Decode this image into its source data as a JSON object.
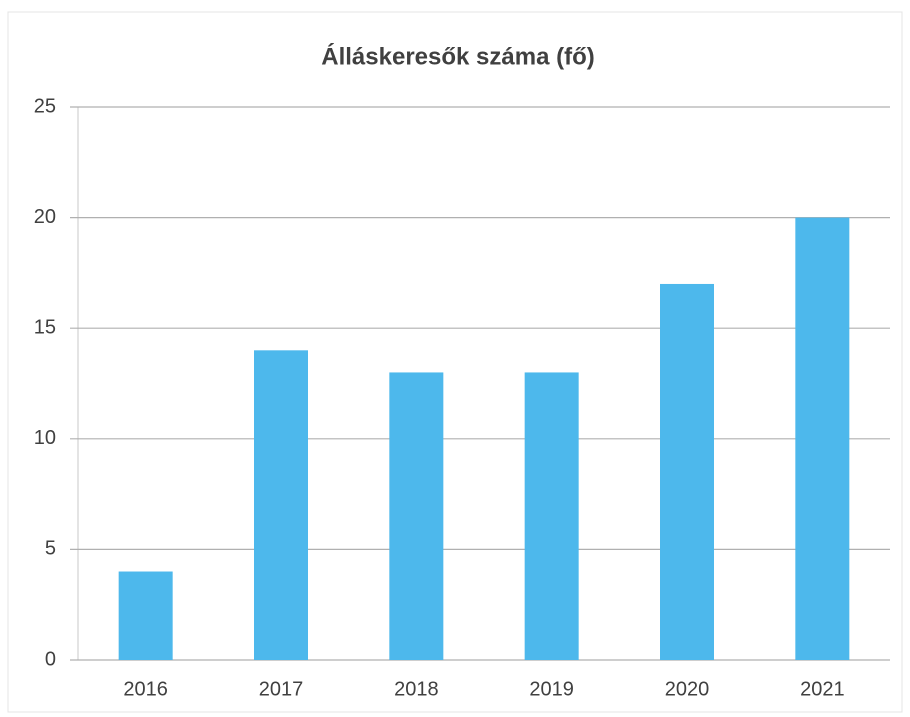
{
  "chart_data": {
    "type": "bar",
    "title": "Álláskeresők száma (fő)",
    "categories": [
      "2016",
      "2017",
      "2018",
      "2019",
      "2020",
      "2021"
    ],
    "values": [
      4,
      14,
      13,
      13,
      17,
      20
    ],
    "color": "#4db8ec",
    "ylim": [
      0,
      25
    ],
    "yticks": [
      0,
      5,
      10,
      15,
      20,
      25
    ],
    "grid": true
  }
}
